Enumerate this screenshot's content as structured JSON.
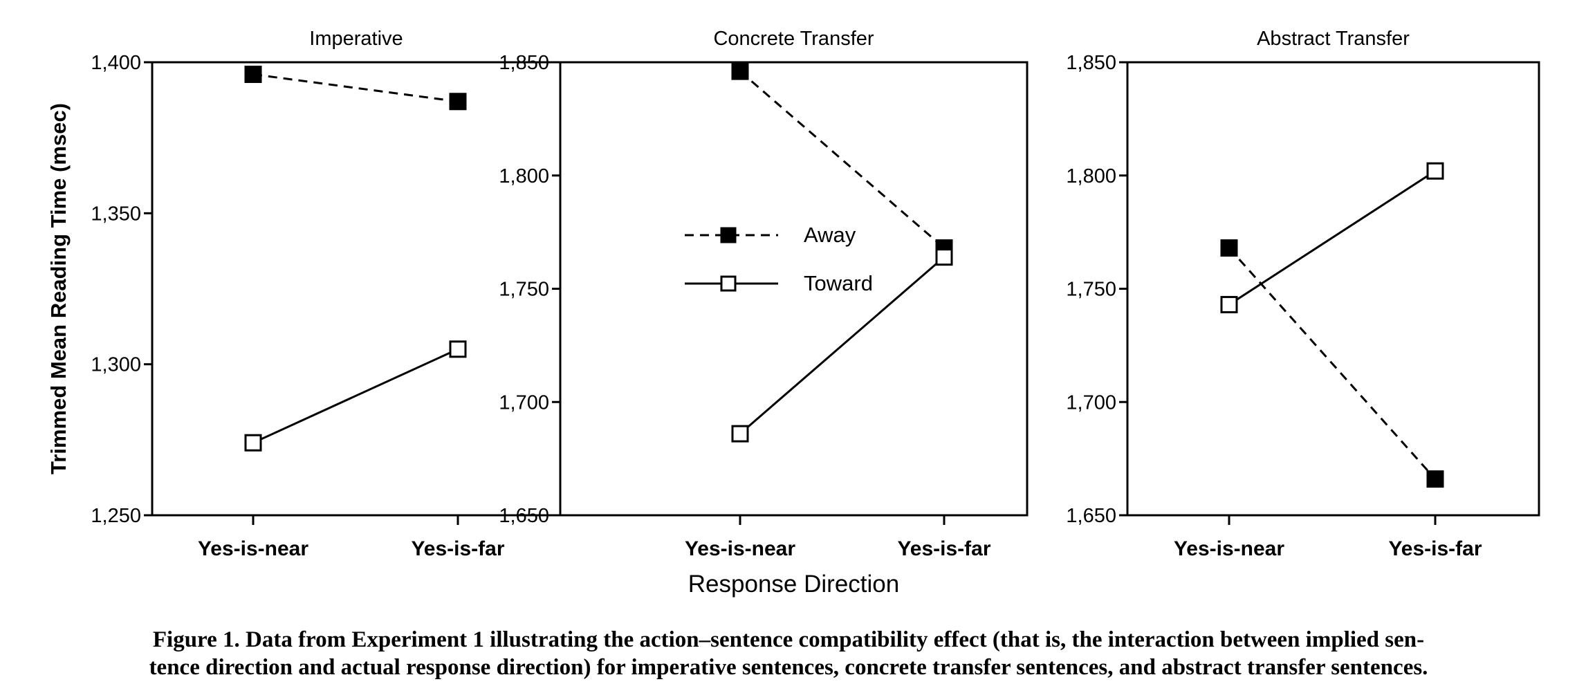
{
  "chart_data": [
    {
      "type": "line",
      "title": "Imperative",
      "xlabel": "",
      "ylabel": "Trimmed Mean Reading Time (msec)",
      "categories": [
        "Yes-is-near",
        "Yes-is-far"
      ],
      "ylim": [
        1250,
        1400
      ],
      "yticks": [
        1250,
        1300,
        1350,
        1400
      ],
      "ytick_labels": [
        "1,250",
        "1,300",
        "1,350",
        "1,400"
      ],
      "series": [
        {
          "name": "Away",
          "values": [
            1396,
            1387
          ],
          "line": "dashed",
          "marker": "filled-square"
        },
        {
          "name": "Toward",
          "values": [
            1274,
            1305
          ],
          "line": "solid",
          "marker": "open-square"
        }
      ]
    },
    {
      "type": "line",
      "title": "Concrete Transfer",
      "xlabel": "Response Direction",
      "ylabel": "",
      "categories": [
        "Yes-is-near",
        "Yes-is-far"
      ],
      "ylim": [
        1650,
        1850
      ],
      "yticks": [
        1650,
        1700,
        1750,
        1800,
        1850
      ],
      "ytick_labels": [
        "1,650",
        "1,700",
        "1,750",
        "1,800",
        "1,850"
      ],
      "legend": "left-center",
      "series": [
        {
          "name": "Away",
          "values": [
            1846,
            1768
          ],
          "line": "dashed",
          "marker": "filled-square"
        },
        {
          "name": "Toward",
          "values": [
            1686,
            1764
          ],
          "line": "solid",
          "marker": "open-square"
        }
      ]
    },
    {
      "type": "line",
      "title": "Abstract Transfer",
      "xlabel": "",
      "ylabel": "",
      "categories": [
        "Yes-is-near",
        "Yes-is-far"
      ],
      "ylim": [
        1650,
        1850
      ],
      "yticks": [
        1650,
        1700,
        1750,
        1800,
        1850
      ],
      "ytick_labels": [
        "1,650",
        "1,700",
        "1,750",
        "1,800",
        "1,850"
      ],
      "series": [
        {
          "name": "Away",
          "values": [
            1768,
            1666
          ],
          "line": "dashed",
          "marker": "filled-square"
        },
        {
          "name": "Toward",
          "values": [
            1743,
            1802
          ],
          "line": "solid",
          "marker": "open-square"
        }
      ]
    }
  ],
  "caption": {
    "line1": "Figure 1. Data from Experiment 1 illustrating the action–sentence compatibility effect (that is, the interaction between implied sen-",
    "line2": "tence direction and actual response direction) for imperative sentences, concrete transfer sentences, and abstract transfer sentences."
  }
}
